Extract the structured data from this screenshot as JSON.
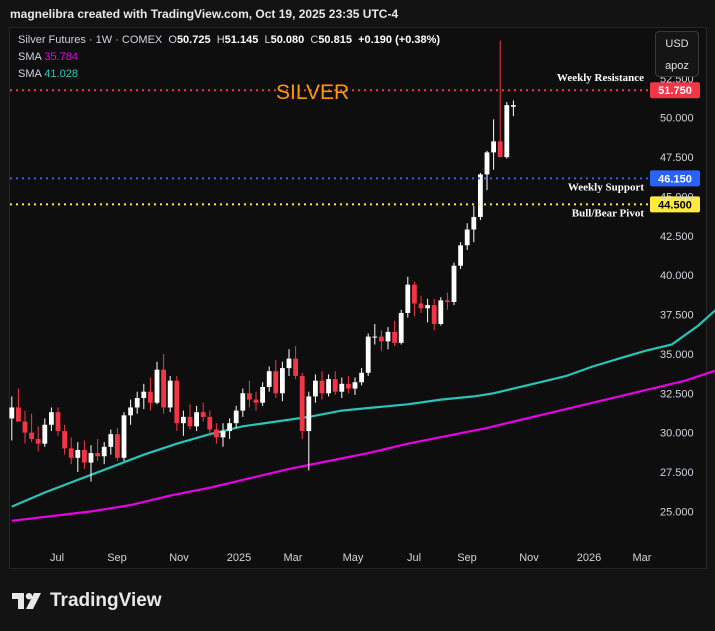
{
  "header": {
    "text": "magnelibra created with TradingView.com, Oct 19, 2025 23:35 UTC-4"
  },
  "legend": {
    "main": "Silver Futures · 1W · COMEX",
    "o_label": "O",
    "o": "50.725",
    "h_label": "H",
    "h": "51.145",
    "l_label": "L",
    "l": "50.080",
    "c_label": "C",
    "c": "50.815",
    "chg": "+0.190 (+0.38%)",
    "sma1_label": "SMA",
    "sma1_value": "35.784",
    "sma2_label": "SMA",
    "sma2_value": "41.028"
  },
  "currency": {
    "line1": "USD",
    "line2": "apoz"
  },
  "brand": {
    "text": "TradingView"
  },
  "colors": {
    "up": "#ffffff",
    "down": "#f23645",
    "sma1": "#e600e6",
    "sma2": "#26c6b8",
    "resistance": "#f23645",
    "support": "#2962ff",
    "pivot": "#ffeb3b",
    "title": "#ff9800"
  },
  "chart_data": {
    "type": "candlestick",
    "title": "SILVER",
    "ylim": [
      22.8,
      55.7
    ],
    "y_ticks": [
      "25.000",
      "27.500",
      "30.000",
      "32.500",
      "35.000",
      "37.500",
      "40.000",
      "42.500",
      "45.000",
      "47.500",
      "50.000",
      "52.500"
    ],
    "x_ticks": [
      "Jul",
      "Sep",
      "Nov",
      "2025",
      "Mar",
      "May",
      "Jul",
      "Sep",
      "Nov",
      "2026",
      "Mar"
    ],
    "levels": [
      {
        "name": "Weekly Resistance",
        "value": 51.75,
        "label": "51.750",
        "color": "#f23645"
      },
      {
        "name": "Weekly Support",
        "value": 46.15,
        "label": "46.150",
        "color": "#2962ff"
      },
      {
        "name": "Bull/Bear Pivot",
        "value": 44.5,
        "label": "44.500",
        "color": "#ffeb3b"
      }
    ],
    "candles": [
      [
        30.9,
        32.3,
        29.5,
        31.6
      ],
      [
        31.6,
        32.8,
        30.8,
        30.7
      ],
      [
        30.7,
        31.4,
        29.3,
        30.0
      ],
      [
        30.0,
        31.2,
        29.4,
        29.6
      ],
      [
        29.6,
        30.4,
        28.8,
        29.3
      ],
      [
        29.3,
        30.9,
        29.1,
        30.5
      ],
      [
        30.5,
        31.6,
        30.1,
        31.3
      ],
      [
        31.3,
        31.6,
        29.8,
        30.1
      ],
      [
        30.1,
        30.5,
        28.6,
        29.0
      ],
      [
        29.0,
        29.7,
        28.0,
        28.4
      ],
      [
        28.4,
        29.4,
        27.5,
        28.9
      ],
      [
        28.9,
        29.5,
        27.7,
        28.1
      ],
      [
        28.1,
        29.2,
        26.9,
        28.7
      ],
      [
        28.7,
        29.6,
        28.2,
        28.5
      ],
      [
        28.5,
        29.4,
        28.0,
        29.1
      ],
      [
        29.1,
        30.2,
        28.6,
        29.9
      ],
      [
        29.9,
        30.3,
        28.2,
        28.4
      ],
      [
        28.4,
        31.3,
        28.2,
        31.1
      ],
      [
        31.1,
        32.1,
        30.5,
        31.6
      ],
      [
        31.6,
        32.6,
        31.2,
        32.2
      ],
      [
        32.2,
        33.1,
        31.5,
        32.6
      ],
      [
        32.6,
        33.5,
        31.4,
        31.9
      ],
      [
        31.9,
        34.5,
        31.8,
        34.0
      ],
      [
        34.0,
        35.0,
        31.2,
        31.6
      ],
      [
        31.6,
        33.6,
        31.3,
        33.3
      ],
      [
        33.3,
        33.6,
        30.1,
        30.6
      ],
      [
        30.6,
        31.4,
        29.8,
        31.0
      ],
      [
        31.0,
        31.8,
        30.2,
        30.4
      ],
      [
        30.4,
        31.7,
        30.1,
        31.3
      ],
      [
        31.3,
        31.9,
        30.7,
        31.0
      ],
      [
        31.0,
        31.4,
        29.8,
        30.2
      ],
      [
        30.2,
        30.6,
        29.3,
        29.7
      ],
      [
        29.7,
        30.6,
        29.1,
        30.1
      ],
      [
        30.1,
        30.9,
        29.6,
        30.6
      ],
      [
        30.6,
        31.7,
        30.3,
        31.4
      ],
      [
        31.4,
        32.8,
        31.0,
        32.5
      ],
      [
        32.5,
        33.3,
        31.6,
        32.1
      ],
      [
        32.1,
        32.6,
        31.4,
        31.9
      ],
      [
        31.9,
        33.2,
        31.7,
        32.9
      ],
      [
        32.9,
        34.2,
        32.6,
        33.9
      ],
      [
        33.9,
        34.6,
        32.2,
        32.5
      ],
      [
        32.5,
        34.5,
        32.0,
        34.1
      ],
      [
        34.1,
        35.3,
        33.6,
        34.7
      ],
      [
        34.7,
        35.5,
        33.4,
        33.6
      ],
      [
        33.6,
        33.8,
        29.6,
        30.1
      ],
      [
        30.1,
        32.6,
        27.6,
        32.3
      ],
      [
        32.3,
        33.7,
        31.9,
        33.3
      ],
      [
        33.3,
        33.9,
        32.1,
        32.5
      ],
      [
        32.5,
        33.7,
        32.3,
        33.4
      ],
      [
        33.4,
        33.9,
        32.4,
        32.6
      ],
      [
        32.6,
        33.5,
        32.2,
        33.1
      ],
      [
        33.1,
        33.6,
        32.5,
        32.8
      ],
      [
        32.8,
        33.5,
        32.4,
        33.2
      ],
      [
        33.2,
        34.1,
        33.0,
        33.8
      ],
      [
        33.8,
        36.3,
        33.6,
        36.1
      ],
      [
        36.1,
        36.9,
        35.6,
        36.1
      ],
      [
        36.1,
        36.5,
        35.2,
        35.8
      ],
      [
        35.8,
        36.7,
        35.3,
        36.4
      ],
      [
        36.4,
        37.1,
        35.5,
        35.7
      ],
      [
        35.7,
        37.8,
        35.6,
        37.6
      ],
      [
        37.6,
        39.9,
        37.3,
        39.4
      ],
      [
        39.4,
        39.6,
        37.4,
        38.2
      ],
      [
        38.2,
        38.7,
        37.6,
        37.9
      ],
      [
        37.9,
        38.5,
        37.0,
        38.1
      ],
      [
        38.1,
        38.5,
        36.5,
        36.9
      ],
      [
        36.9,
        38.6,
        36.8,
        38.4
      ],
      [
        38.4,
        38.9,
        37.8,
        38.3
      ],
      [
        38.3,
        40.8,
        38.1,
        40.6
      ],
      [
        40.6,
        42.1,
        40.4,
        41.9
      ],
      [
        41.9,
        43.3,
        41.6,
        42.9
      ],
      [
        42.9,
        44.4,
        42.1,
        43.7
      ],
      [
        43.7,
        46.5,
        43.5,
        46.4
      ],
      [
        46.4,
        47.9,
        45.4,
        47.8
      ],
      [
        47.8,
        49.9,
        46.7,
        48.5
      ],
      [
        48.5,
        54.9,
        47.5,
        47.5
      ],
      [
        47.5,
        51.0,
        47.4,
        50.8
      ],
      [
        50.7,
        51.1,
        50.1,
        50.8
      ]
    ],
    "sma_35_784_points": [
      [
        0,
        24.4
      ],
      [
        6,
        24.7
      ],
      [
        12,
        25.0
      ],
      [
        18,
        25.4
      ],
      [
        24,
        26.0
      ],
      [
        30,
        26.5
      ],
      [
        36,
        27.1
      ],
      [
        42,
        27.7
      ],
      [
        48,
        28.2
      ],
      [
        54,
        28.7
      ],
      [
        60,
        29.3
      ],
      [
        66,
        29.8
      ],
      [
        72,
        30.3
      ],
      [
        77,
        30.8
      ],
      [
        82,
        31.3
      ],
      [
        87,
        31.8
      ],
      [
        92,
        32.3
      ],
      [
        97,
        32.8
      ],
      [
        102,
        33.3
      ],
      [
        107,
        34.0
      ],
      [
        111,
        34.6
      ],
      [
        114,
        35.2
      ],
      [
        117,
        35.784
      ]
    ],
    "sma_41_028_points": [
      [
        0,
        25.3
      ],
      [
        5,
        26.2
      ],
      [
        10,
        27.0
      ],
      [
        15,
        27.8
      ],
      [
        20,
        28.6
      ],
      [
        25,
        29.3
      ],
      [
        30,
        29.9
      ],
      [
        35,
        30.4
      ],
      [
        40,
        30.7
      ],
      [
        45,
        31.0
      ],
      [
        50,
        31.4
      ],
      [
        55,
        31.6
      ],
      [
        60,
        31.8
      ],
      [
        65,
        32.1
      ],
      [
        70,
        32.3
      ],
      [
        73,
        32.5
      ],
      [
        76,
        32.8
      ],
      [
        80,
        33.2
      ],
      [
        84,
        33.6
      ],
      [
        88,
        34.2
      ],
      [
        92,
        34.7
      ],
      [
        96,
        35.2
      ],
      [
        100,
        35.6
      ],
      [
        104,
        36.8
      ],
      [
        108,
        38.3
      ],
      [
        112,
        39.4
      ],
      [
        115,
        40.3
      ],
      [
        117,
        41.028
      ]
    ]
  }
}
